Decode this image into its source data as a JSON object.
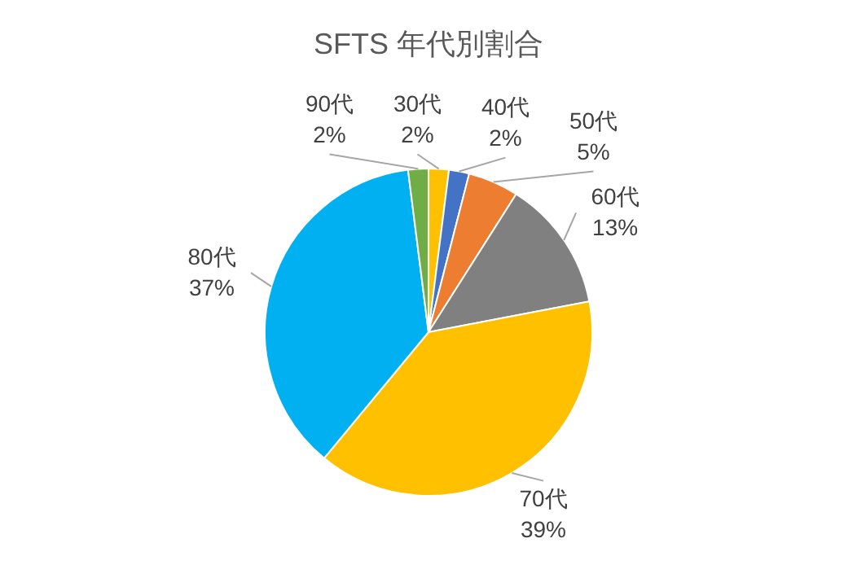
{
  "chart_data": {
    "type": "pie",
    "title": "SFTS 年代別割合",
    "categories": [
      "30代",
      "40代",
      "50代",
      "60代",
      "70代",
      "80代",
      "90代"
    ],
    "values": [
      2,
      2,
      5,
      13,
      39,
      37,
      2
    ],
    "value_labels": [
      "2%",
      "2%",
      "5%",
      "13%",
      "39%",
      "37%",
      "2%"
    ],
    "colors": [
      "#ffc000",
      "#4472c4",
      "#ed7d31",
      "#808080",
      "#ffc000",
      "#00b0f0",
      "#70ad47"
    ],
    "legend": false
  }
}
